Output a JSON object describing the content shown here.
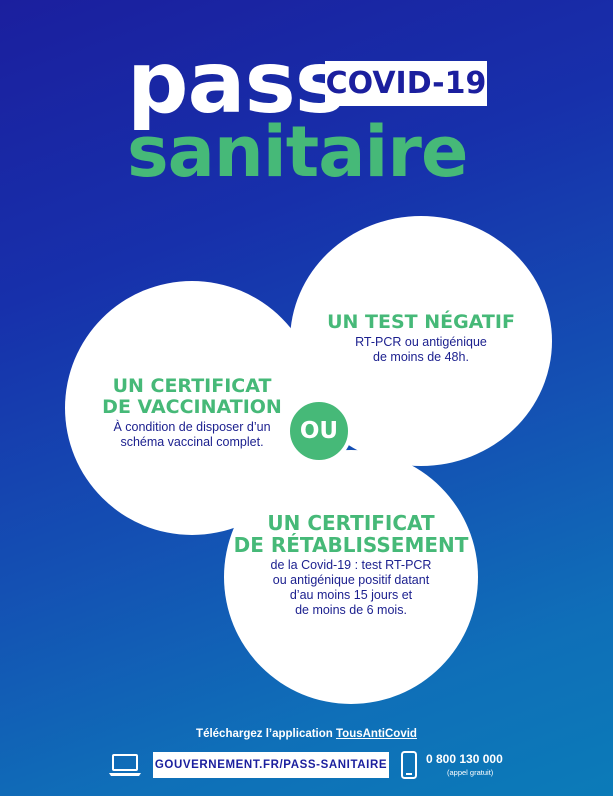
{
  "title": {
    "pass": "pass",
    "badge": "COVID-19",
    "sanitaire": "sanitaire"
  },
  "options": {
    "vaccination": {
      "heading_lines": [
        "UN CERTIFICAT",
        "DE VACCINATION"
      ],
      "desc_lines": [
        "À condition de disposer d’un",
        "schéma vaccinal complet."
      ]
    },
    "test": {
      "heading_lines": [
        "UN TEST NÉGATIF"
      ],
      "desc_lines": [
        "RT-PCR ou antigénique",
        "de moins de 48h."
      ]
    },
    "retablissement": {
      "heading_lines": [
        "UN CERTIFICAT",
        "DE RÉTABLISSEMENT"
      ],
      "desc_lines": [
        "de la Covid-19 : test RT-PCR",
        "ou antigénique positif datant",
        "d’au moins 15 jours et",
        "de moins de 6 mois."
      ]
    },
    "separator": "OU"
  },
  "footer": {
    "download_prefix": "Téléchargez l’application ",
    "app_name": "TousAntiCovid",
    "url": "GOUVERNEMENT.FR/PASS-SANITAIRE",
    "phone": "0 800 130 000",
    "phone_note": "(appel gratuit)"
  },
  "colors": {
    "background_top": "#1b1f9e",
    "background_bottom": "#0b7bb8",
    "accent_green": "#46b978",
    "text_navy": "#1b1f8e",
    "white": "#ffffff"
  },
  "icons": [
    "laptop-icon",
    "phone-icon"
  ]
}
